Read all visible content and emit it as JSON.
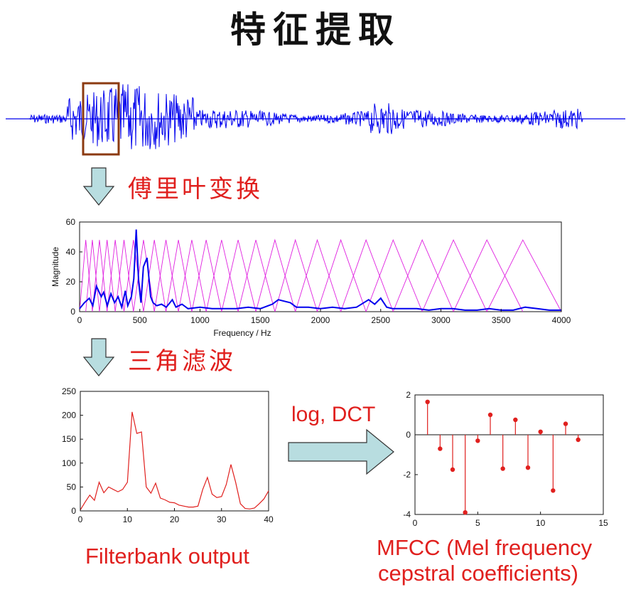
{
  "title": "特征提取",
  "steps": {
    "fourier": "傅里叶变换",
    "filter": "三角滤波",
    "log_dct": "log, DCT"
  },
  "labels": {
    "filterbank": "Filterbank output",
    "mfcc_line1": "MFCC (Mel frequency",
    "mfcc_line2": "cepstral coefficients)"
  },
  "colors": {
    "signal": "#0000ee",
    "filters": "#e020e0",
    "red": "#e0201e",
    "arrow_fill": "#b8dde0",
    "frame_box": "#8b3a10"
  },
  "icons": [
    "down-arrow-icon",
    "down-arrow-icon",
    "right-arrow-icon"
  ],
  "chart_data": [
    {
      "type": "line",
      "xlabel": "Frequency / Hz",
      "ylabel": "Magnitude",
      "xlim": [
        0,
        4000
      ],
      "ylim": [
        0,
        60
      ],
      "xticks": [
        0,
        500,
        1000,
        1500,
        2000,
        2500,
        3000,
        3500,
        4000
      ],
      "yticks": [
        0,
        20,
        40,
        60
      ],
      "filter_count": 26,
      "filter_peak": 48,
      "series": [
        {
          "x": [
            0,
            40,
            80,
            110,
            140,
            180,
            200,
            230,
            260,
            290,
            320,
            350,
            380,
            400,
            430,
            450,
            470,
            490,
            510,
            530,
            560,
            590,
            610,
            640,
            680,
            720,
            770,
            800,
            850,
            900,
            1000,
            1100,
            1200,
            1300,
            1400,
            1500,
            1600,
            1650,
            1700,
            1750,
            1800,
            1900,
            2000,
            2100,
            2200,
            2300,
            2400,
            2450,
            2500,
            2550,
            2600,
            2700,
            2800,
            2900,
            3000,
            3100,
            3200,
            3300,
            3400,
            3500,
            3600,
            3700,
            3800,
            3900,
            4000
          ],
          "y": [
            2,
            6,
            9,
            4,
            17,
            10,
            13,
            4,
            12,
            6,
            10,
            3,
            14,
            4,
            10,
            22,
            55,
            20,
            6,
            30,
            36,
            10,
            6,
            4,
            5,
            3,
            8,
            3,
            5,
            2,
            3,
            2,
            2,
            2,
            3,
            2,
            5,
            8,
            7,
            6,
            3,
            3,
            2,
            3,
            2,
            3,
            8,
            5,
            9,
            3,
            2,
            2,
            2,
            1,
            2,
            2,
            1,
            1,
            2,
            1,
            1,
            3,
            2,
            1,
            1
          ]
        }
      ]
    },
    {
      "type": "line",
      "xlabel": "",
      "ylabel": "",
      "xlim": [
        0,
        40
      ],
      "ylim": [
        0,
        250
      ],
      "xticks": [
        0,
        10,
        20,
        30,
        40
      ],
      "yticks": [
        0,
        50,
        100,
        150,
        200,
        250
      ],
      "series": [
        {
          "x": [
            0,
            1,
            2,
            3,
            4,
            5,
            6,
            7,
            8,
            9,
            10,
            11,
            12,
            13,
            14,
            15,
            16,
            17,
            18,
            19,
            20,
            21,
            22,
            23,
            24,
            25,
            26,
            27,
            28,
            29,
            30,
            31,
            32,
            33,
            34,
            35,
            36,
            37,
            38,
            39,
            40
          ],
          "y": [
            2,
            18,
            33,
            22,
            60,
            38,
            50,
            45,
            40,
            45,
            60,
            207,
            162,
            165,
            50,
            37,
            58,
            27,
            23,
            18,
            17,
            12,
            10,
            8,
            8,
            10,
            45,
            70,
            35,
            28,
            30,
            55,
            97,
            60,
            15,
            5,
            4,
            6,
            15,
            25,
            42
          ]
        }
      ]
    },
    {
      "type": "scatter",
      "xlabel": "",
      "ylabel": "",
      "xlim": [
        0,
        15
      ],
      "ylim": [
        -4,
        2
      ],
      "xticks": [
        0,
        5,
        10,
        15
      ],
      "yticks": [
        -4,
        -2,
        0,
        2
      ],
      "series": [
        {
          "x": [
            1,
            2,
            3,
            4,
            5,
            6,
            7,
            8,
            9,
            10,
            11,
            12,
            13
          ],
          "y": [
            1.65,
            -0.7,
            -1.75,
            -3.9,
            -0.3,
            1.0,
            -1.7,
            0.75,
            -1.65,
            0.15,
            -2.8,
            0.55,
            -0.25
          ]
        }
      ]
    }
  ]
}
